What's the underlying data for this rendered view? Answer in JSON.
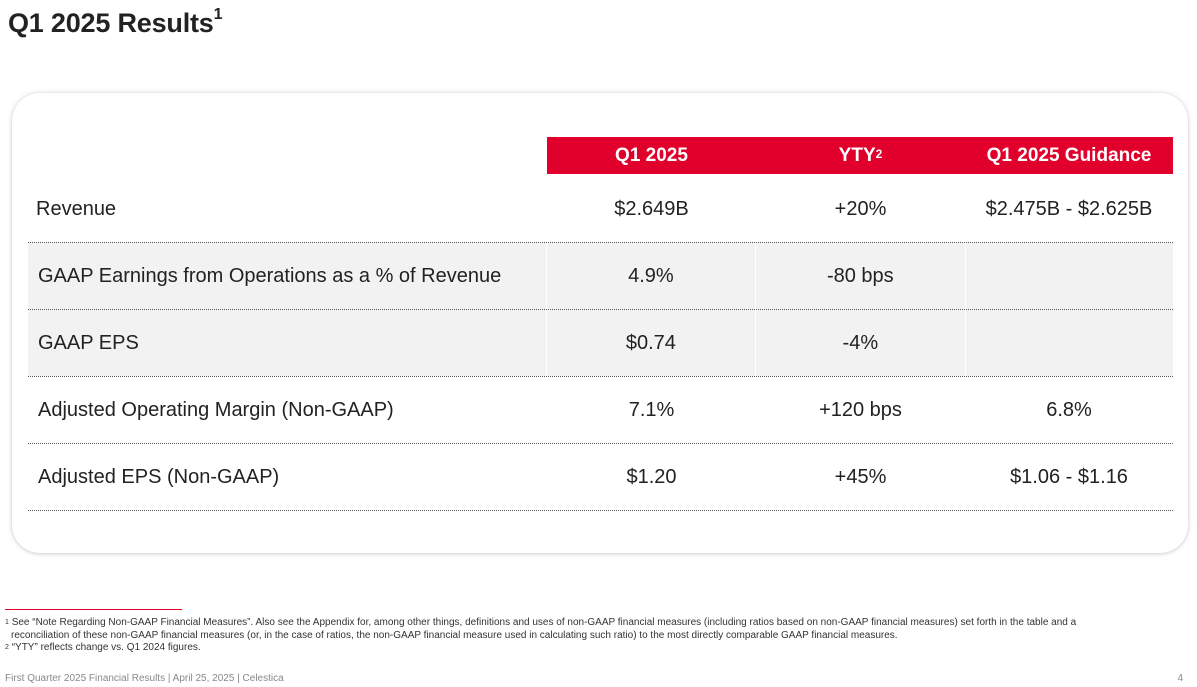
{
  "page": {
    "title": "Q1 2025 Results",
    "title_sup": "1"
  },
  "table": {
    "headers": {
      "q1": "Q1 2025",
      "yty": "YTY",
      "yty_sup": "2",
      "guidance": "Q1 2025 Guidance"
    },
    "rows": [
      {
        "label": "Revenue",
        "q1": "$2.649B",
        "yty": "+20%",
        "guidance": "$2.475B - $2.625B"
      },
      {
        "label": "GAAP Earnings from Operations as a % of Revenue",
        "q1": "4.9%",
        "yty": "-80 bps",
        "guidance": ""
      },
      {
        "label": "GAAP EPS",
        "q1": "$0.74",
        "yty": "-4%",
        "guidance": ""
      },
      {
        "label": "Adjusted Operating Margin (Non-GAAP)",
        "q1": "7.1%",
        "yty": "+120 bps",
        "guidance": "6.8%"
      },
      {
        "label": "Adjusted EPS (Non-GAAP)",
        "q1": "$1.20",
        "yty": "+45%",
        "guidance": "$1.06 - $1.16"
      }
    ]
  },
  "footnotes": {
    "n1_marker": "1",
    "n1_line1": "See “Note Regarding Non-GAAP Financial Measures”. Also see the Appendix for, among other things, definitions and uses of non-GAAP financial measures (including ratios based on non-GAAP financial measures) set forth in the table and a",
    "n1_line2": "reconciliation of these non-GAAP financial measures (or, in the case of ratios, the non-GAAP financial measure used in calculating such ratio) to the most directly comparable GAAP financial measures.",
    "n2_marker": "2",
    "n2": "“YTY” reflects change vs. Q1 2024 figures."
  },
  "footer": {
    "text": "First Quarter 2025 Financial Results |  April 25, 2025  |  Celestica",
    "page_number": "4"
  },
  "colors": {
    "accent": "#e0002b",
    "row_shade": "#f2f2f2"
  }
}
